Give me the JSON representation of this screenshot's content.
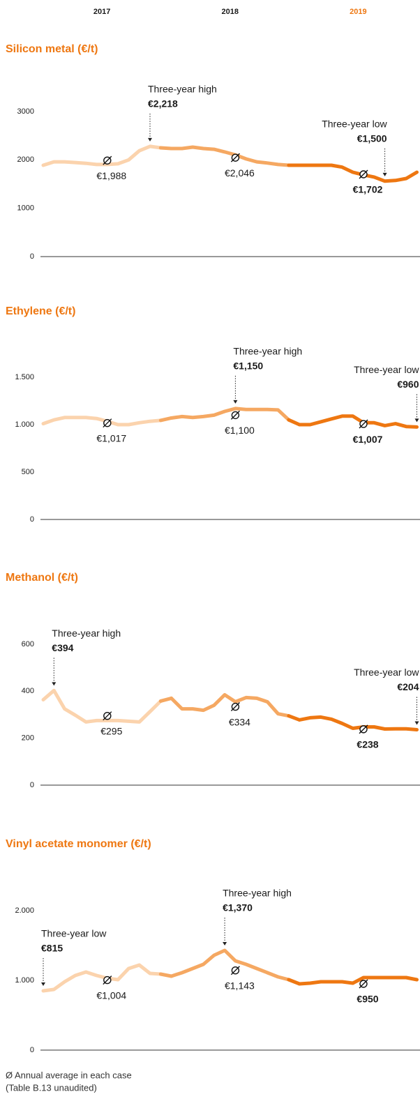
{
  "header": {
    "years": [
      "2017",
      "2018",
      "2019"
    ]
  },
  "chart_data": [
    {
      "type": "line",
      "title": "Silicon metal (€/t)",
      "ylim": [
        0,
        3000
      ],
      "yticks": [
        0,
        1000,
        2000,
        3000
      ],
      "series": [
        {
          "color": "#fbd3ad",
          "values": [
            1890,
            1960,
            1960,
            1945,
            1930,
            1905,
            1905,
            1920,
            2000,
            2190,
            2280,
            2250
          ]
        },
        {
          "color": "#f5a862",
          "values": [
            2235,
            2235,
            2265,
            2235,
            2220,
            2165,
            2105,
            2020,
            1960,
            1935,
            1905,
            1890
          ]
        },
        {
          "color": "#ee7711",
          "values": [
            1890,
            1890,
            1890,
            1890,
            1850,
            1745,
            1690,
            1645,
            1560,
            1575,
            1615,
            1745
          ]
        }
      ],
      "averages": [
        1988,
        2046,
        1702
      ],
      "average_labels": [
        "€1,988",
        "€2,046",
        "€1,702"
      ],
      "high": {
        "label": "Three-year high",
        "value": 2218,
        "value_label": "€2,218"
      },
      "low": {
        "label": "Three-year low",
        "value": 1500,
        "value_label": "€1,500"
      }
    },
    {
      "type": "line",
      "title": "Ethylene (€/t)",
      "ylim": [
        0,
        1500
      ],
      "yticks": [
        0,
        {
          "value": 500,
          "label": "500"
        },
        {
          "value": 1000,
          "label": "1.000"
        },
        {
          "value": 1500,
          "label": "1.500"
        }
      ],
      "series": [
        {
          "color": "#fbd3ad",
          "values": [
            1010,
            1050,
            1075,
            1075,
            1075,
            1065,
            1035,
            1000,
            1000,
            1020,
            1035,
            1045
          ]
        },
        {
          "color": "#f5a862",
          "values": [
            1070,
            1085,
            1075,
            1085,
            1100,
            1140,
            1170,
            1160,
            1160,
            1160,
            1155,
            1050
          ]
        },
        {
          "color": "#ee7711",
          "values": [
            1000,
            1000,
            1030,
            1060,
            1090,
            1090,
            1020,
            1020,
            990,
            1010,
            980,
            975
          ]
        }
      ],
      "averages": [
        1017,
        1100,
        1007
      ],
      "average_labels": [
        "€1,017",
        "€1,100",
        "€1,007"
      ],
      "high": {
        "label": "Three-year high",
        "value": 1150,
        "value_label": "€1,150"
      },
      "low": {
        "label": "Three-year low",
        "value": 960,
        "value_label": "€960"
      }
    },
    {
      "type": "line",
      "title": "Methanol (€/t)",
      "ylim": [
        0,
        600
      ],
      "yticks": [
        0,
        200,
        400,
        600
      ],
      "series": [
        {
          "color": "#fbd3ad",
          "values": [
            364,
            403,
            325,
            298,
            269,
            275,
            275,
            275,
            272,
            269,
            313,
            358
          ]
        },
        {
          "color": "#f5a862",
          "values": [
            370,
            325,
            325,
            319,
            340,
            385,
            355,
            373,
            370,
            355,
            304,
            295
          ]
        },
        {
          "color": "#ee7711",
          "values": [
            278,
            287,
            290,
            281,
            263,
            242,
            248,
            248,
            239,
            240,
            240,
            236
          ]
        }
      ],
      "averages": [
        295,
        334,
        238
      ],
      "average_labels": [
        "€295",
        "€334",
        "€238"
      ],
      "high": {
        "label": "Three-year high",
        "value": 394,
        "value_label": "€394"
      },
      "low": {
        "label": "Three-year low",
        "value": 204,
        "value_label": "€204"
      }
    },
    {
      "type": "line",
      "title": "Vinyl acetate monomer (€/t)",
      "ylim": [
        0,
        2000
      ],
      "yticks": [
        0,
        {
          "value": 1000,
          "label": "1.000"
        },
        {
          "value": 2000,
          "label": "2.000"
        }
      ],
      "series": [
        {
          "color": "#fbd3ad",
          "values": [
            850,
            870,
            980,
            1070,
            1120,
            1070,
            1030,
            1010,
            1170,
            1220,
            1100,
            1090
          ]
        },
        {
          "color": "#f5a862",
          "values": [
            1060,
            1110,
            1170,
            1230,
            1360,
            1430,
            1280,
            1230,
            1170,
            1110,
            1050,
            1010
          ]
        },
        {
          "color": "#ee7711",
          "values": [
            950,
            960,
            980,
            980,
            980,
            960,
            1040,
            1040,
            1040,
            1040,
            1040,
            1010
          ]
        }
      ],
      "averages": [
        1004,
        1143,
        950
      ],
      "average_labels": [
        "€1,004",
        "€1,143",
        "€950"
      ],
      "high": {
        "label": "Three-year high",
        "value": 1370,
        "value_label": "€1,370"
      },
      "low": {
        "label": "Three-year low",
        "value": 815,
        "value_label": "€815"
      }
    }
  ],
  "footnote": [
    "Ø Annual average in each case",
    "(Table B.13 unaudited)"
  ]
}
